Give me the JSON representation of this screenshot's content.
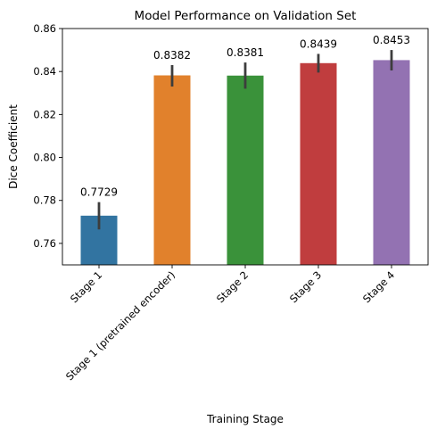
{
  "chart_data": {
    "type": "bar",
    "title": "Model Performance on Validation Set",
    "xlabel": "Training Stage",
    "ylabel": "Dice Coefficient",
    "ylim": [
      0.75,
      0.86
    ],
    "yticks": [
      "0.76",
      "0.78",
      "0.80",
      "0.82",
      "0.84",
      "0.86"
    ],
    "grid": false,
    "categories": [
      "Stage 1",
      "Stage 1 (pretrained encoder)",
      "Stage 2",
      "Stage 3",
      "Stage 4"
    ],
    "values": [
      0.7729,
      0.8382,
      0.8381,
      0.8439,
      0.8453
    ],
    "value_labels": [
      "0.7729",
      "0.8382",
      "0.8381",
      "0.8439",
      "0.8453"
    ],
    "error_low": [
      0.7665,
      0.833,
      0.832,
      0.8395,
      0.8405
    ],
    "error_high": [
      0.7792,
      0.843,
      0.8442,
      0.8482,
      0.85
    ],
    "colors": [
      "#3274a1",
      "#e1812c",
      "#3a923a",
      "#c03d3e",
      "#9372b2"
    ]
  }
}
